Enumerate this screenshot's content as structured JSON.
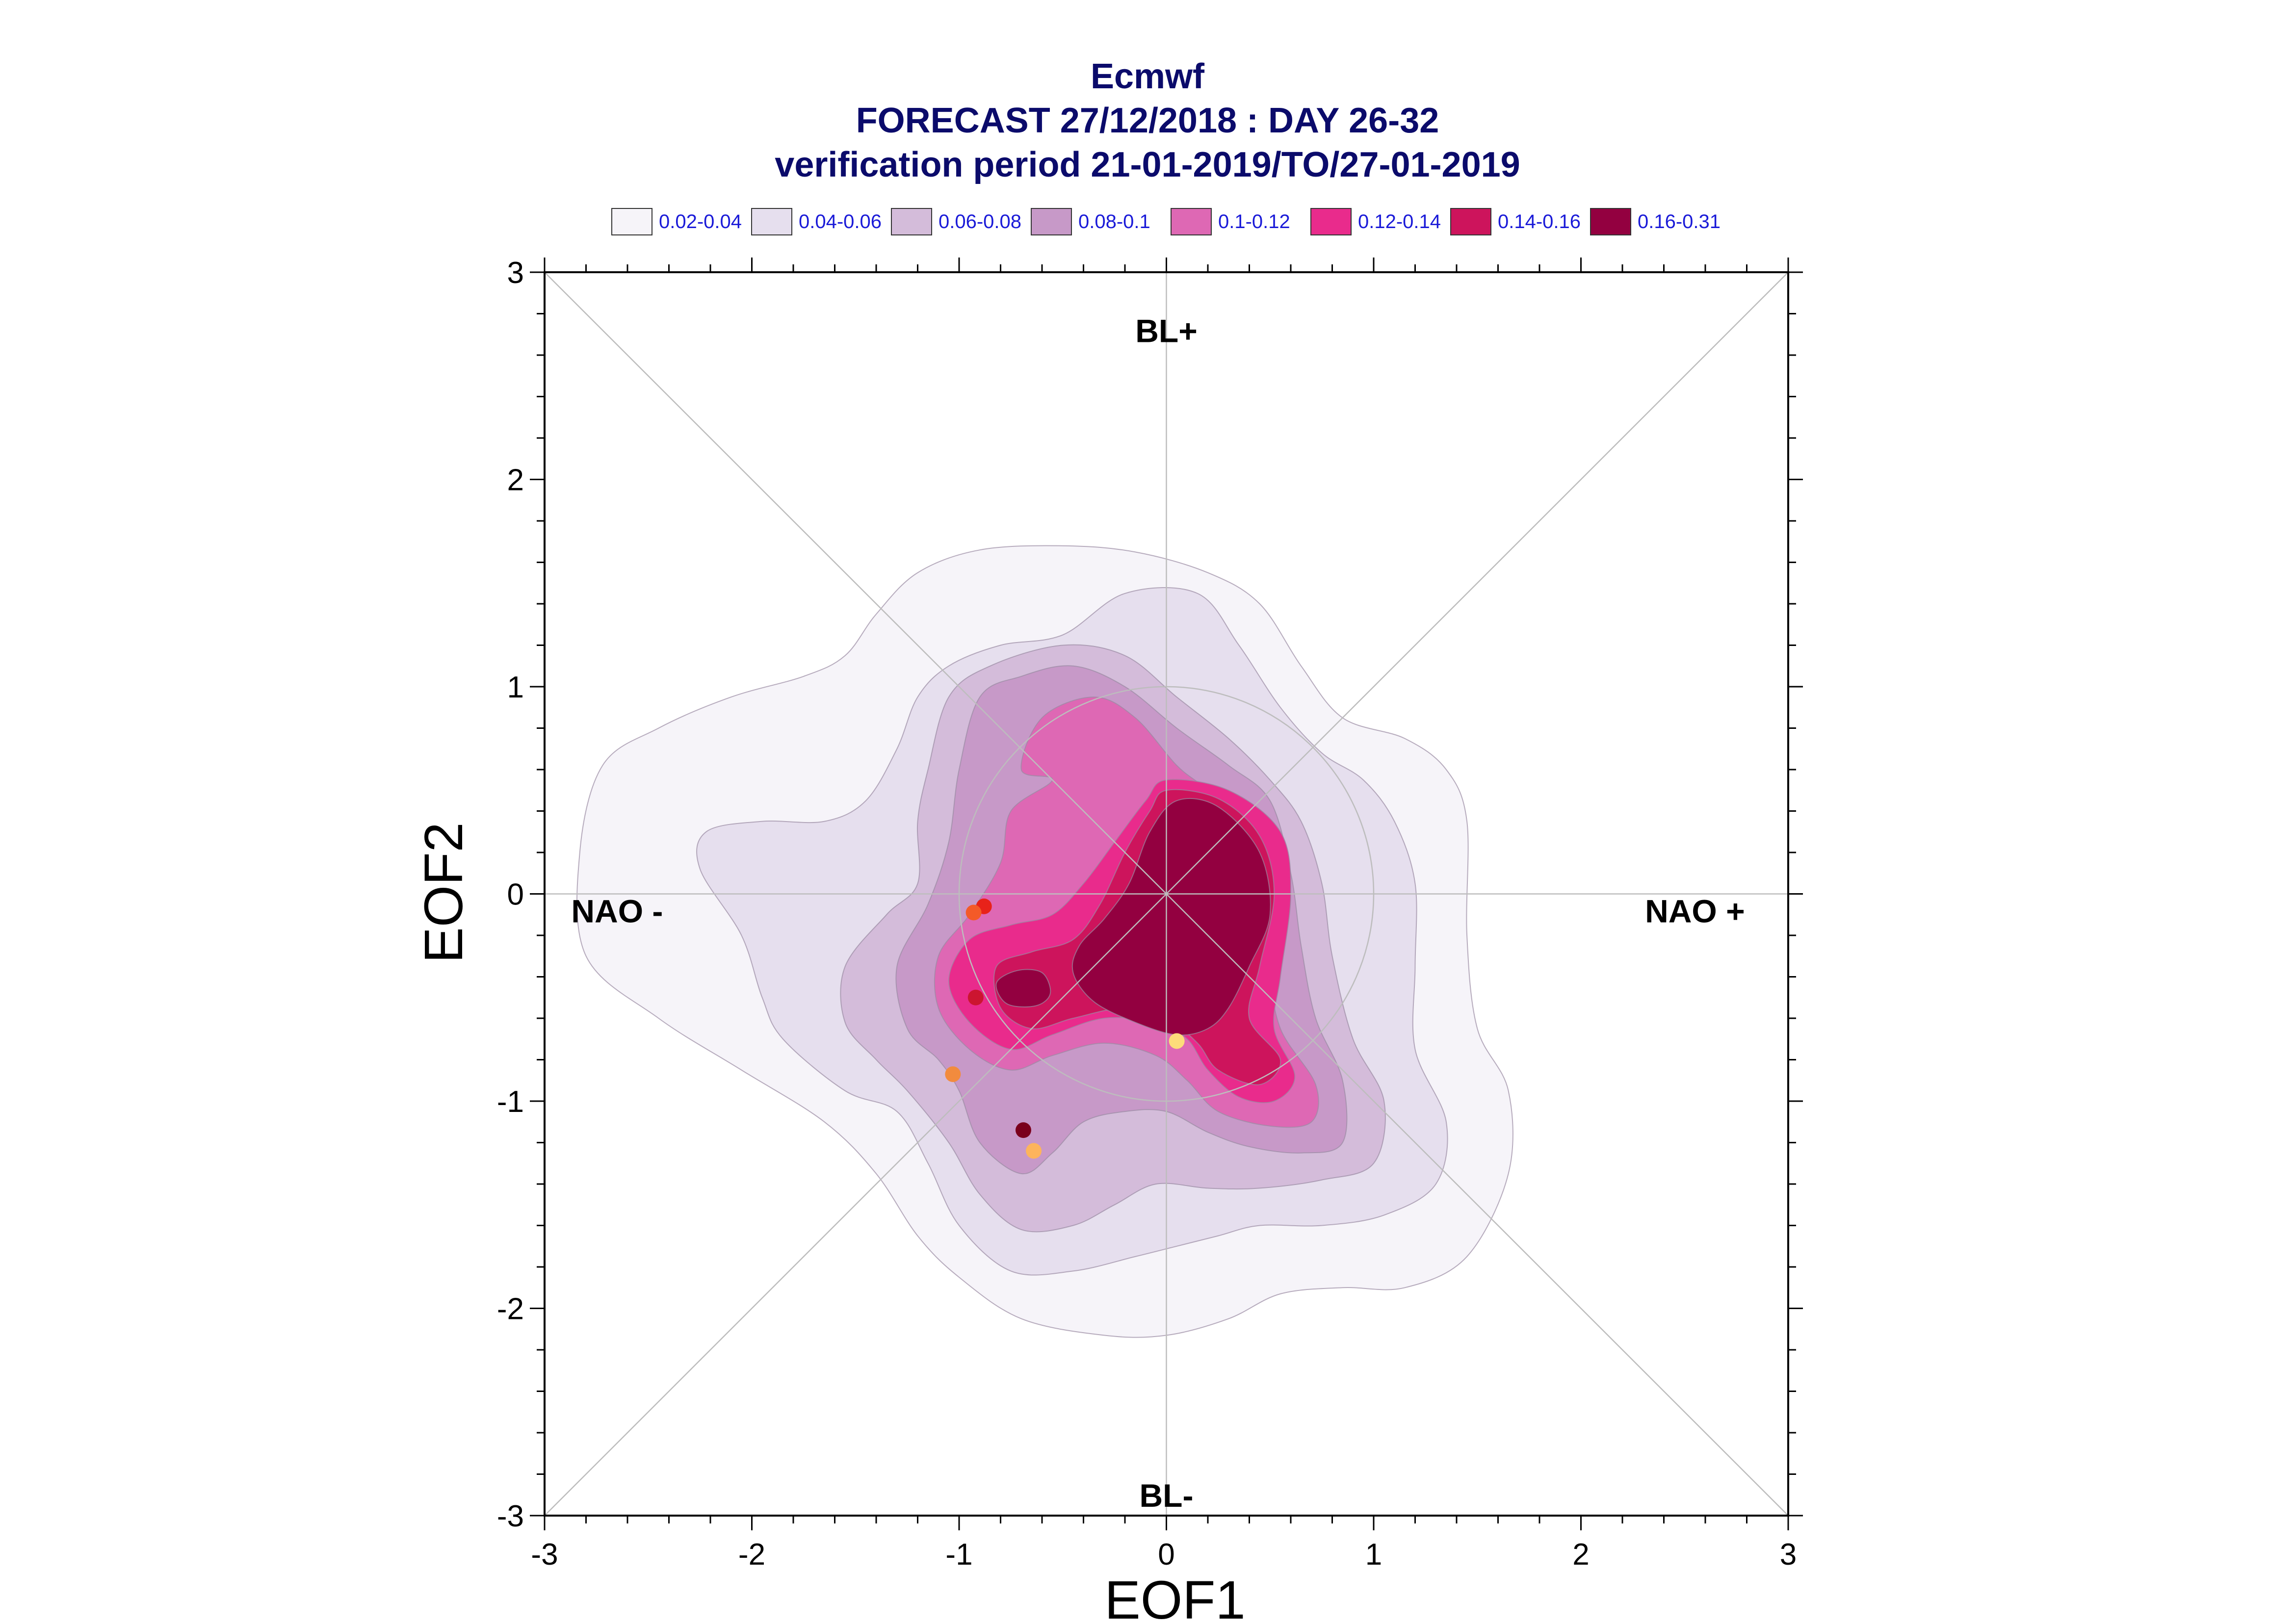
{
  "chart_data": {
    "type": "contour",
    "title": [
      "Ecmwf",
      "FORECAST 27/12/2018 : DAY 26-32",
      "verification period 21-01-2019/TO/27-01-2019"
    ],
    "xlabel": "EOF1",
    "ylabel": "EOF2",
    "xlim": [
      -3,
      3
    ],
    "ylim": [
      -3,
      3
    ],
    "xticks": [
      -3,
      -2,
      -1,
      0,
      1,
      2,
      3
    ],
    "yticks": [
      -3,
      -2,
      -1,
      0,
      1,
      2,
      3
    ],
    "grid": false,
    "legend_position": "top",
    "legend": [
      {
        "label": "0.02-0.04",
        "color": "#f6f4f9"
      },
      {
        "label": "0.04-0.06",
        "color": "#e6dfee"
      },
      {
        "label": "0.06-0.08",
        "color": "#d4bcda"
      },
      {
        "label": "0.08-0.1",
        "color": "#c799c8"
      },
      {
        "label": "0.1-0.12",
        "color": "#de68b4"
      },
      {
        "label": "0.12-0.14",
        "color": "#e92b8c"
      },
      {
        "label": "0.14-0.16",
        "color": "#cd145c"
      },
      {
        "label": "0.16-0.31",
        "color": "#930040"
      }
    ],
    "regime_labels": [
      {
        "text": "BL+",
        "x": 0,
        "y": 2.72
      },
      {
        "text": "BL-",
        "x": 0,
        "y": -2.9
      },
      {
        "text": "NAO -",
        "x": -2.65,
        "y": -0.08
      },
      {
        "text": "NAO +",
        "x": 2.55,
        "y": -0.08
      }
    ],
    "contours": [
      {
        "level": "0.02-0.04",
        "color": "#f6f4f9",
        "points": [
          [
            -2.83,
            0.2
          ],
          [
            -2.72,
            0.62
          ],
          [
            -2.45,
            0.8
          ],
          [
            -2.1,
            0.95
          ],
          [
            -1.75,
            1.05
          ],
          [
            -1.55,
            1.15
          ],
          [
            -1.4,
            1.35
          ],
          [
            -1.2,
            1.55
          ],
          [
            -0.9,
            1.66
          ],
          [
            -0.5,
            1.68
          ],
          [
            -0.15,
            1.65
          ],
          [
            0.2,
            1.55
          ],
          [
            0.45,
            1.4
          ],
          [
            0.65,
            1.1
          ],
          [
            0.85,
            0.85
          ],
          [
            1.15,
            0.75
          ],
          [
            1.35,
            0.6
          ],
          [
            1.45,
            0.35
          ],
          [
            1.45,
            -0.2
          ],
          [
            1.5,
            -0.65
          ],
          [
            1.65,
            -0.95
          ],
          [
            1.65,
            -1.35
          ],
          [
            1.45,
            -1.75
          ],
          [
            1.15,
            -1.9
          ],
          [
            0.85,
            -1.9
          ],
          [
            0.55,
            -1.93
          ],
          [
            0.3,
            -2.05
          ],
          [
            0.0,
            -2.13
          ],
          [
            -0.3,
            -2.13
          ],
          [
            -0.7,
            -2.05
          ],
          [
            -1.0,
            -1.85
          ],
          [
            -1.2,
            -1.65
          ],
          [
            -1.4,
            -1.35
          ],
          [
            -1.65,
            -1.1
          ],
          [
            -2.05,
            -0.85
          ],
          [
            -2.45,
            -0.6
          ],
          [
            -2.8,
            -0.3
          ]
        ]
      },
      {
        "level": "0.04-0.06",
        "color": "#e6dfee",
        "points": [
          [
            -2.25,
            0.12
          ],
          [
            -2.22,
            0.3
          ],
          [
            -1.95,
            0.35
          ],
          [
            -1.65,
            0.35
          ],
          [
            -1.45,
            0.45
          ],
          [
            -1.3,
            0.7
          ],
          [
            -1.2,
            0.95
          ],
          [
            -1.05,
            1.1
          ],
          [
            -0.8,
            1.2
          ],
          [
            -0.5,
            1.25
          ],
          [
            -0.2,
            1.45
          ],
          [
            0.15,
            1.45
          ],
          [
            0.35,
            1.2
          ],
          [
            0.55,
            0.9
          ],
          [
            0.75,
            0.68
          ],
          [
            0.95,
            0.55
          ],
          [
            1.1,
            0.35
          ],
          [
            1.2,
            0.05
          ],
          [
            1.2,
            -0.35
          ],
          [
            1.2,
            -0.75
          ],
          [
            1.35,
            -1.1
          ],
          [
            1.3,
            -1.4
          ],
          [
            1.05,
            -1.55
          ],
          [
            0.75,
            -1.6
          ],
          [
            0.45,
            -1.6
          ],
          [
            0.25,
            -1.65
          ],
          [
            0.05,
            -1.7
          ],
          [
            -0.15,
            -1.75
          ],
          [
            -0.45,
            -1.82
          ],
          [
            -0.75,
            -1.82
          ],
          [
            -1.0,
            -1.6
          ],
          [
            -1.15,
            -1.3
          ],
          [
            -1.3,
            -1.05
          ],
          [
            -1.55,
            -0.95
          ],
          [
            -1.85,
            -0.7
          ],
          [
            -1.95,
            -0.5
          ],
          [
            -2.05,
            -0.2
          ]
        ]
      },
      {
        "level": "0.06-0.08",
        "color": "#d4bcda",
        "points": [
          [
            -1.2,
            0.35
          ],
          [
            -1.15,
            0.6
          ],
          [
            -1.05,
            0.95
          ],
          [
            -0.85,
            1.1
          ],
          [
            -0.5,
            1.2
          ],
          [
            -0.2,
            1.15
          ],
          [
            0.05,
            0.95
          ],
          [
            0.3,
            0.75
          ],
          [
            0.5,
            0.55
          ],
          [
            0.65,
            0.35
          ],
          [
            0.75,
            0.05
          ],
          [
            0.8,
            -0.3
          ],
          [
            0.9,
            -0.7
          ],
          [
            1.05,
            -1.0
          ],
          [
            1.0,
            -1.3
          ],
          [
            0.75,
            -1.38
          ],
          [
            0.45,
            -1.42
          ],
          [
            0.2,
            -1.42
          ],
          [
            -0.05,
            -1.4
          ],
          [
            -0.25,
            -1.5
          ],
          [
            -0.45,
            -1.6
          ],
          [
            -0.7,
            -1.62
          ],
          [
            -0.9,
            -1.45
          ],
          [
            -1.05,
            -1.2
          ],
          [
            -1.25,
            -0.95
          ],
          [
            -1.4,
            -0.8
          ],
          [
            -1.55,
            -0.62
          ],
          [
            -1.55,
            -0.35
          ],
          [
            -1.35,
            -0.1
          ],
          [
            -1.2,
            0.05
          ]
        ]
      },
      {
        "level": "0.08-0.1",
        "color": "#c799c8",
        "points": [
          [
            -1.0,
            0.6
          ],
          [
            -0.9,
            0.95
          ],
          [
            -0.7,
            1.05
          ],
          [
            -0.45,
            1.1
          ],
          [
            -0.2,
            1.0
          ],
          [
            0.05,
            0.8
          ],
          [
            0.3,
            0.62
          ],
          [
            0.5,
            0.45
          ],
          [
            0.6,
            0.1
          ],
          [
            0.65,
            -0.25
          ],
          [
            0.72,
            -0.6
          ],
          [
            0.85,
            -0.9
          ],
          [
            0.85,
            -1.2
          ],
          [
            0.65,
            -1.25
          ],
          [
            0.4,
            -1.22
          ],
          [
            0.2,
            -1.15
          ],
          [
            0.0,
            -1.05
          ],
          [
            -0.2,
            -1.05
          ],
          [
            -0.4,
            -1.1
          ],
          [
            -0.55,
            -1.25
          ],
          [
            -0.7,
            -1.35
          ],
          [
            -0.9,
            -1.2
          ],
          [
            -1.0,
            -0.95
          ],
          [
            -1.1,
            -0.8
          ],
          [
            -1.25,
            -0.65
          ],
          [
            -1.3,
            -0.35
          ],
          [
            -1.15,
            -0.05
          ],
          [
            -1.05,
            0.25
          ]
        ]
      },
      {
        "level": "0.1-0.12",
        "color": "#de68b4",
        "points": [
          [
            -0.7,
            0.6
          ],
          [
            -0.6,
            0.85
          ],
          [
            -0.35,
            0.95
          ],
          [
            -0.15,
            0.85
          ],
          [
            0.05,
            0.62
          ],
          [
            0.2,
            0.5
          ],
          [
            0.4,
            0.3
          ],
          [
            0.5,
            0.0
          ],
          [
            0.5,
            -0.35
          ],
          [
            0.55,
            -0.65
          ],
          [
            0.72,
            -0.92
          ],
          [
            0.7,
            -1.1
          ],
          [
            0.5,
            -1.12
          ],
          [
            0.25,
            -1.05
          ],
          [
            0.1,
            -0.9
          ],
          [
            -0.05,
            -0.78
          ],
          [
            -0.3,
            -0.72
          ],
          [
            -0.55,
            -0.78
          ],
          [
            -0.75,
            -0.85
          ],
          [
            -0.95,
            -0.75
          ],
          [
            -1.1,
            -0.55
          ],
          [
            -1.1,
            -0.3
          ],
          [
            -0.95,
            -0.1
          ],
          [
            -0.8,
            0.15
          ],
          [
            -0.75,
            0.4
          ],
          [
            -0.55,
            0.55
          ]
        ]
      },
      {
        "level": "0.12-0.14",
        "color": "#e92b8c",
        "points": [
          [
            0.0,
            0.55
          ],
          [
            0.3,
            0.5
          ],
          [
            0.55,
            0.3
          ],
          [
            0.6,
            0.0
          ],
          [
            0.55,
            -0.4
          ],
          [
            0.52,
            -0.65
          ],
          [
            0.62,
            -0.88
          ],
          [
            0.52,
            -1.0
          ],
          [
            0.35,
            -0.98
          ],
          [
            0.2,
            -0.85
          ],
          [
            0.1,
            -0.7
          ],
          [
            -0.05,
            -0.62
          ],
          [
            -0.3,
            -0.6
          ],
          [
            -0.55,
            -0.68
          ],
          [
            -0.75,
            -0.75
          ],
          [
            -0.95,
            -0.62
          ],
          [
            -1.05,
            -0.42
          ],
          [
            -0.95,
            -0.22
          ],
          [
            -0.75,
            -0.15
          ],
          [
            -0.55,
            -0.1
          ],
          [
            -0.4,
            0.05
          ],
          [
            -0.25,
            0.25
          ],
          [
            -0.1,
            0.45
          ]
        ]
      },
      {
        "level": "0.14-0.16",
        "color": "#cd145c",
        "points": [
          [
            0.0,
            0.5
          ],
          [
            0.25,
            0.46
          ],
          [
            0.45,
            0.28
          ],
          [
            0.52,
            0.0
          ],
          [
            0.45,
            -0.35
          ],
          [
            0.4,
            -0.6
          ],
          [
            0.55,
            -0.8
          ],
          [
            0.45,
            -0.92
          ],
          [
            0.25,
            -0.85
          ],
          [
            0.15,
            -0.72
          ],
          [
            0.0,
            -0.6
          ],
          [
            -0.2,
            -0.55
          ],
          [
            -0.45,
            -0.6
          ],
          [
            -0.65,
            -0.65
          ],
          [
            -0.8,
            -0.55
          ],
          [
            -0.82,
            -0.35
          ],
          [
            -0.65,
            -0.28
          ],
          [
            -0.45,
            -0.22
          ],
          [
            -0.32,
            -0.05
          ],
          [
            -0.2,
            0.2
          ],
          [
            -0.08,
            0.4
          ]
        ]
      },
      {
        "level": "0.16-0.31",
        "color": "#930040",
        "points": [
          [
            0.05,
            0.45
          ],
          [
            0.25,
            0.42
          ],
          [
            0.45,
            0.2
          ],
          [
            0.5,
            -0.1
          ],
          [
            0.4,
            -0.35
          ],
          [
            0.3,
            -0.55
          ],
          [
            0.2,
            -0.65
          ],
          [
            0.05,
            -0.68
          ],
          [
            -0.15,
            -0.62
          ],
          [
            -0.35,
            -0.52
          ],
          [
            -0.45,
            -0.38
          ],
          [
            -0.42,
            -0.25
          ],
          [
            -0.3,
            -0.12
          ],
          [
            -0.18,
            0.05
          ],
          [
            -0.08,
            0.3
          ]
        ]
      },
      {
        "level": "0.16-0.31",
        "color": "#930040",
        "points": [
          [
            -0.82,
            -0.43
          ],
          [
            -0.72,
            -0.37
          ],
          [
            -0.6,
            -0.38
          ],
          [
            -0.56,
            -0.48
          ],
          [
            -0.63,
            -0.54
          ],
          [
            -0.77,
            -0.53
          ]
        ]
      }
    ],
    "scatter": [
      {
        "x": -0.88,
        "y": -0.06,
        "color": "#e8221a"
      },
      {
        "x": -0.93,
        "y": -0.09,
        "color": "#f45a28"
      },
      {
        "x": -0.92,
        "y": -0.5,
        "color": "#cc1530"
      },
      {
        "x": -1.03,
        "y": -0.87,
        "color": "#f28b3e"
      },
      {
        "x": -0.69,
        "y": -1.14,
        "color": "#7a001c"
      },
      {
        "x": -0.64,
        "y": -1.24,
        "color": "#fdb45c"
      },
      {
        "x": 0.05,
        "y": -0.71,
        "color": "#fddc7a"
      }
    ],
    "reference_circle": {
      "cx": 0,
      "cy": 0,
      "r": 1
    }
  }
}
